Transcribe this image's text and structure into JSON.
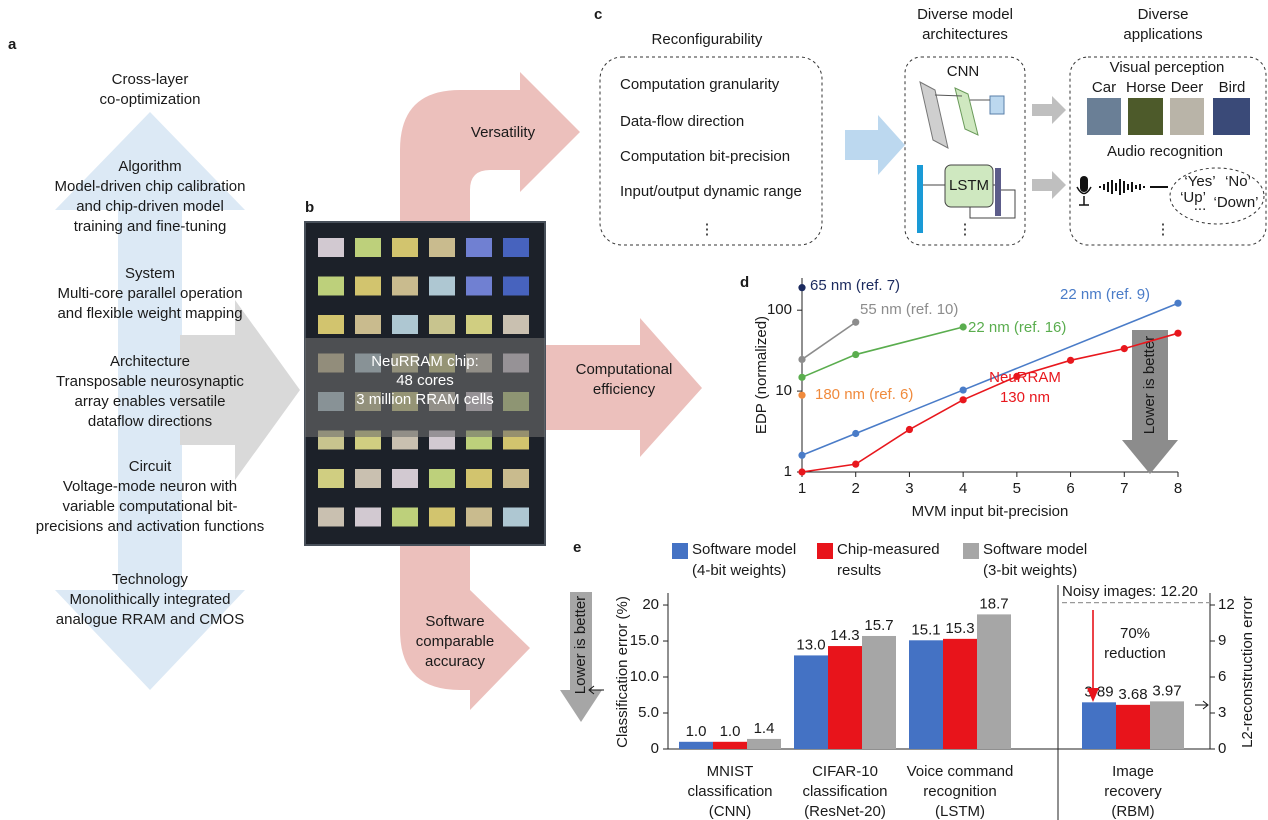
{
  "panel_a": {
    "label": "a",
    "top": [
      "Cross-layer",
      "co-optimization"
    ],
    "levels": [
      [
        "Algorithm",
        "Model-driven chip calibration",
        "and chip-driven model",
        "training and fine-tuning"
      ],
      [
        "System",
        "Multi-core parallel operation",
        "and flexible weight mapping"
      ],
      [
        "Architecture",
        "Transposable neurosynaptic",
        "array enables versatile",
        "dataflow directions"
      ],
      [
        "Circuit",
        "Voltage-mode neuron with",
        "variable computational bit-",
        "precisions and activation functions"
      ],
      [
        "Technology",
        "Monolithically integrated",
        "analogue RRAM and CMOS"
      ]
    ]
  },
  "panel_b": {
    "label": "b",
    "chip": [
      "NeuRRAM chip:",
      "48 cores",
      "3 million RRAM cells"
    ]
  },
  "arrows": {
    "versatility": "Versatility",
    "efficiency": [
      "Computational",
      "efficiency"
    ],
    "accuracy": [
      "Software",
      "comparable",
      "accuracy"
    ]
  },
  "panel_c": {
    "label": "c",
    "reconfigurability": {
      "title": "Reconfigurability",
      "items": [
        "Computation granularity",
        "Data-flow direction",
        "Computation bit-precision",
        "Input/output dynamic range"
      ],
      "more": "⋮"
    },
    "architectures": {
      "title": [
        "Diverse model",
        "architectures"
      ],
      "cnn": "CNN",
      "lstm": "LSTM",
      "more": "⋮"
    },
    "applications": {
      "title": [
        "Diverse",
        "applications"
      ],
      "visual": "Visual perception",
      "classes": [
        "Car",
        "Horse",
        "Deer",
        "Bird"
      ],
      "audio": "Audio recognition",
      "words": [
        "‘Yes’",
        "‘No’",
        "‘Up’",
        "‘Down’"
      ],
      "ellipsis": "...",
      "more": "⋮"
    }
  },
  "chart_data": [
    {
      "type": "line",
      "label": "d",
      "xlabel": "MVM input bit-precision",
      "ylabel": "EDP (normalized)",
      "log_y": true,
      "xlim": [
        1,
        8
      ],
      "xticks": [
        1,
        2,
        3,
        4,
        5,
        6,
        7,
        8
      ],
      "ylim": [
        1,
        250
      ],
      "yticks": [
        1,
        10,
        100
      ],
      "annotation": "Lower is better",
      "series": [
        {
          "name": "65 nm (ref. 7)",
          "color": "#1b2a5e",
          "x": [
            1
          ],
          "values": [
            190
          ]
        },
        {
          "name": "55 nm (ref. 10)",
          "color": "#8c8c8c",
          "x": [
            1,
            2
          ],
          "values": [
            24.6,
            71
          ]
        },
        {
          "name": "22 nm (ref. 16)",
          "color": "#5aad4e",
          "x": [
            1,
            2,
            4
          ],
          "values": [
            14.8,
            28.3,
            62
          ]
        },
        {
          "name": "180 nm (ref. 6)",
          "color": "#f08a3c",
          "x": [
            1
          ],
          "values": [
            8.9
          ]
        },
        {
          "name": "22 nm (ref. 9)",
          "color": "#4a7cc8",
          "x": [
            1,
            2,
            4,
            8
          ],
          "values": [
            1.61,
            2.99,
            10.3,
            122
          ]
        },
        {
          "name": "NeuRRAM 130 nm",
          "color": "#e8171d",
          "x": [
            1,
            2,
            3,
            4,
            5,
            6,
            7,
            8
          ],
          "values": [
            1.0,
            1.25,
            3.35,
            7.8,
            15.2,
            24,
            33.5,
            52
          ]
        }
      ]
    },
    {
      "type": "bar",
      "label": "e",
      "categories": [
        "MNIST classification (CNN)",
        "CIFAR-10 classification (ResNet-20)",
        "Voice command recognition (LSTM)",
        "Image recovery (RBM)"
      ],
      "category_axis": [
        "y",
        "y",
        "y",
        "y2"
      ],
      "ylabel": "Classification error (%)",
      "y2label": "L2-reconstruction error",
      "ylim": [
        0,
        21.67
      ],
      "yticks": [
        0,
        {
          "value": 5,
          "label": "5.0"
        },
        {
          "value": 10,
          "label": "10.0"
        },
        {
          "value": 15,
          "label": "15.0"
        },
        20
      ],
      "y2lim": [
        0,
        13
      ],
      "y2ticks": [
        0,
        3,
        6,
        9,
        12
      ],
      "annotations": [
        {
          "text": "Noisy images: 12.20",
          "value": 12.2,
          "axis": "y2"
        },
        {
          "text": "70% reduction"
        },
        {
          "text": "Lower is better"
        }
      ],
      "series": [
        {
          "name": "Software model (4-bit weights)",
          "color": "#4472c4",
          "values": [
            1.0,
            13.0,
            15.1,
            3.89
          ],
          "value_labels": [
            "1.0",
            "13.0",
            "15.1",
            "3.89"
          ]
        },
        {
          "name": "Chip-measured results",
          "color": "#e8141b",
          "values": [
            1.0,
            14.3,
            15.3,
            3.68
          ],
          "value_labels": [
            "1.0",
            "14.3",
            "15.3",
            "3.68"
          ]
        },
        {
          "name": "Software model (3-bit weights)",
          "color": "#a6a6a6",
          "values": [
            1.4,
            15.7,
            18.7,
            3.97
          ],
          "value_labels": [
            "1.4",
            "15.7",
            "18.7",
            "3.97"
          ]
        }
      ]
    }
  ]
}
